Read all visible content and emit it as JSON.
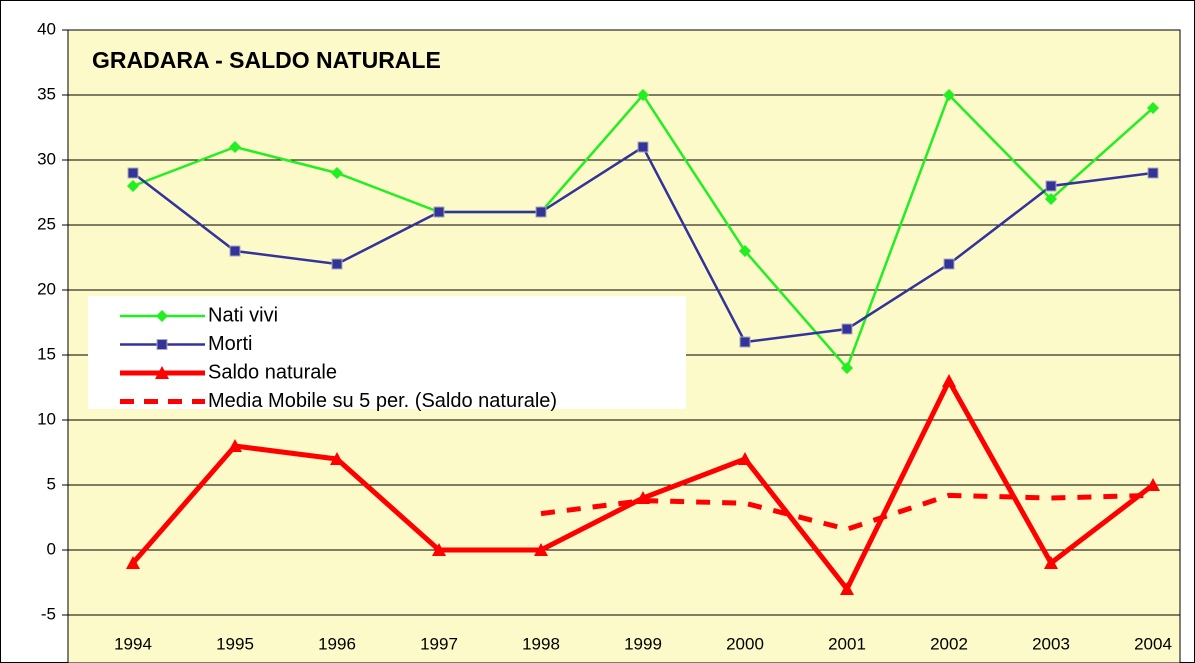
{
  "chart_data": {
    "type": "line",
    "title": "GRADARA - SALDO NATURALE",
    "categories": [
      "1994",
      "1995",
      "1996",
      "1997",
      "1998",
      "1999",
      "2000",
      "2001",
      "2002",
      "2003",
      "2004"
    ],
    "series": [
      {
        "name": "Nati vivi",
        "color": "#22ee22",
        "marker": "diamond",
        "values": [
          28,
          31,
          29,
          26,
          26,
          35,
          23,
          14,
          35,
          27,
          34
        ]
      },
      {
        "name": "Morti",
        "color": "#333399",
        "marker": "square",
        "values": [
          29,
          23,
          22,
          26,
          26,
          31,
          16,
          17,
          22,
          28,
          29
        ]
      },
      {
        "name": "Saldo naturale",
        "color": "#ff0000",
        "marker": "triangle",
        "values": [
          -1,
          8,
          7,
          0,
          0,
          4,
          7,
          -3,
          13,
          -1,
          5
        ]
      },
      {
        "name": "Media Mobile su 5 per. (Saldo naturale)",
        "color": "#ff0000",
        "dashed": true,
        "values": [
          null,
          null,
          null,
          null,
          2.8,
          3.8,
          3.6,
          1.6,
          4.2,
          4,
          4.2
        ]
      }
    ],
    "ylim": [
      -5,
      40
    ],
    "yticks": [
      -5,
      0,
      5,
      10,
      15,
      20,
      25,
      30,
      35,
      40
    ],
    "grid": true
  }
}
